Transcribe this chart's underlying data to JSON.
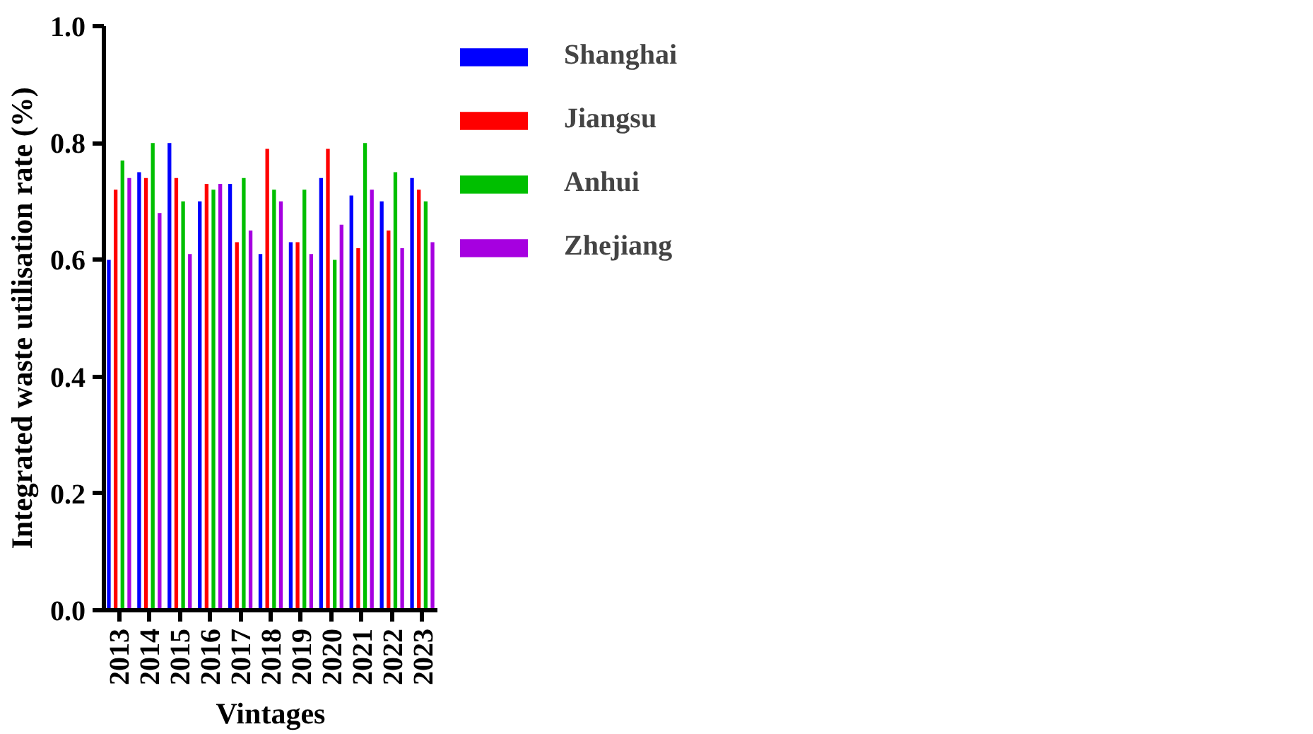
{
  "chart_data": {
    "type": "bar",
    "xlabel": "Vintages",
    "ylabel": "Integrated waste utilisation rate (%)",
    "categories": [
      "2013",
      "2014",
      "2015",
      "2016",
      "2017",
      "2018",
      "2019",
      "2020",
      "2021",
      "2022",
      "2023"
    ],
    "series": [
      {
        "name": "Shanghai",
        "color": "#0000ff",
        "values": [
          0.6,
          0.75,
          0.8,
          0.7,
          0.73,
          0.61,
          0.63,
          0.74,
          0.71,
          0.7,
          0.74
        ]
      },
      {
        "name": "Jiangsu",
        "color": "#ff0000",
        "values": [
          0.72,
          0.74,
          0.74,
          0.73,
          0.63,
          0.79,
          0.63,
          0.79,
          0.62,
          0.65,
          0.72
        ]
      },
      {
        "name": "Anhui",
        "color": "#00bf00",
        "values": [
          0.77,
          0.8,
          0.7,
          0.72,
          0.74,
          0.72,
          0.72,
          0.6,
          0.8,
          0.75,
          0.7
        ]
      },
      {
        "name": "Zhejiang",
        "color": "#a600e0",
        "values": [
          0.74,
          0.68,
          0.61,
          0.73,
          0.65,
          0.7,
          0.61,
          0.66,
          0.72,
          0.62,
          0.63
        ]
      }
    ],
    "ylim": [
      0,
      1.0
    ],
    "yticks": [
      {
        "value": 0,
        "label": "0.0"
      },
      0.2,
      0.4,
      0.6,
      0.8,
      {
        "value": 1.0,
        "label": "1.0"
      }
    ],
    "grid": false,
    "legend": "top right"
  }
}
